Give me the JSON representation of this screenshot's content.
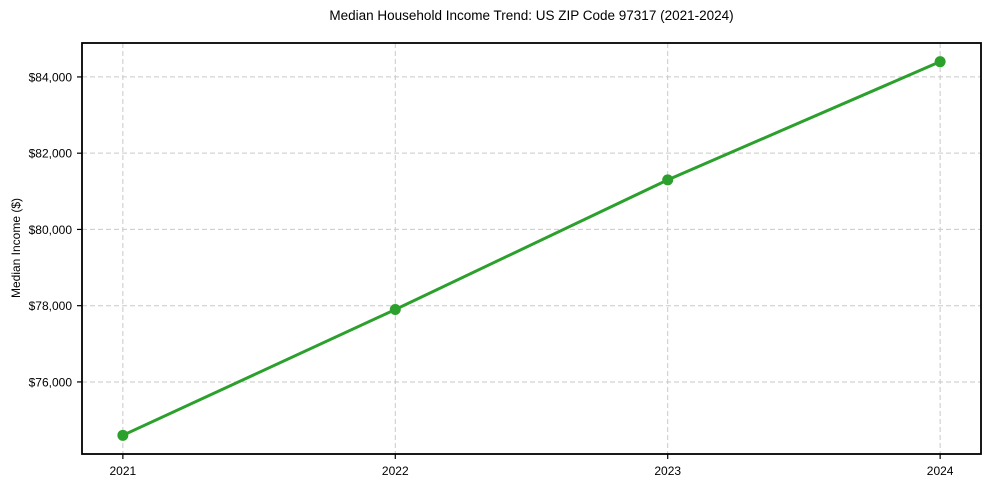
{
  "chart_data": {
    "type": "line",
    "title": "Median Household Income Trend: US ZIP Code 97317 (2021-2024)",
    "xlabel": "",
    "ylabel": "Median Income ($)",
    "x": [
      2021,
      2022,
      2023,
      2024
    ],
    "categories": [
      "2021",
      "2022",
      "2023",
      "2024"
    ],
    "values": [
      74600,
      77900,
      81300,
      84400
    ],
    "y_ticks": [
      {
        "value": 76000,
        "label": "$76,000"
      },
      {
        "value": 78000,
        "label": "$78,000"
      },
      {
        "value": 80000,
        "label": "$80,000"
      },
      {
        "value": 82000,
        "label": "$82,000"
      },
      {
        "value": 84000,
        "label": "$84,000"
      }
    ],
    "xlim": [
      2020.85,
      2024.15
    ],
    "ylim": [
      74110,
      84890
    ],
    "grid": true,
    "grid_linestyle": "dashed",
    "legend_position": "none",
    "marker": "circle",
    "colors": {
      "line": "#2ca02c",
      "marker": "#2ca02c",
      "grid": "#c9c9c9",
      "axis": "#000000",
      "text": "#000000",
      "background": "#ffffff"
    }
  }
}
